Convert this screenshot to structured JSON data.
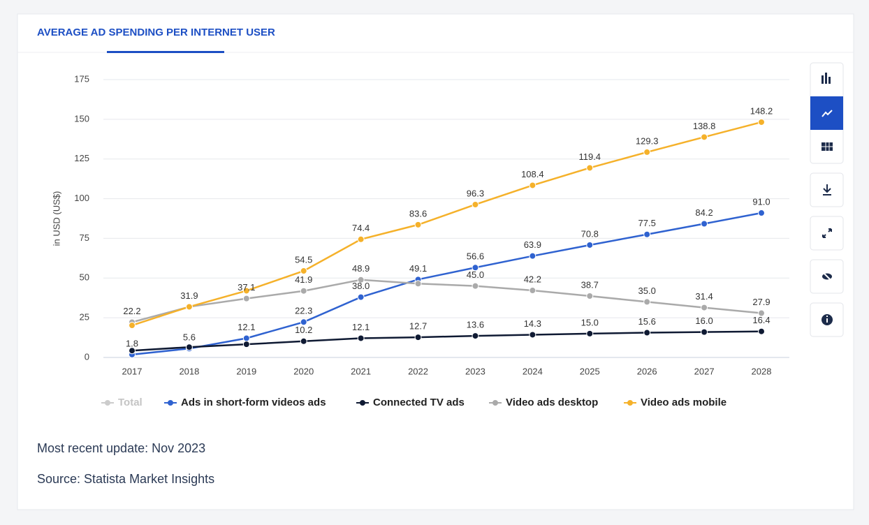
{
  "chart_data": {
    "type": "line",
    "title": "AVERAGE AD SPENDING PER INTERNET USER",
    "y_label": "in USD (US$)",
    "categories": [
      "2017",
      "2018",
      "2019",
      "2020",
      "2021",
      "2022",
      "2023",
      "2024",
      "2025",
      "2026",
      "2027",
      "2028"
    ],
    "series": [
      {
        "name": "Total",
        "color": "#c8c8c8",
        "hidden": true,
        "values": [
          null,
          null,
          null,
          null,
          null,
          null,
          null,
          null,
          null,
          null,
          null,
          null
        ]
      },
      {
        "name": "Ads in short-form videos ads",
        "color": "#2f62d0",
        "values": [
          1.8,
          5.6,
          12.1,
          22.3,
          38.0,
          49.1,
          56.6,
          63.9,
          70.8,
          77.5,
          84.2,
          91.0
        ],
        "value_labels": [
          "1.8",
          "5.6",
          "12.1",
          "22.3",
          "38.0",
          "49.1",
          "56.6",
          "63.9",
          "70.8",
          "77.5",
          "84.2",
          "91.0"
        ]
      },
      {
        "name": "Connected TV ads",
        "color": "#0f1a33",
        "values": [
          4.3,
          6.5,
          8.3,
          10.2,
          12.1,
          12.7,
          13.6,
          14.3,
          15.0,
          15.6,
          16.0,
          16.4
        ],
        "value_labels": [
          null,
          null,
          null,
          "10.2",
          "12.1",
          "12.7",
          "13.6",
          "14.3",
          "15.0",
          "15.6",
          "16.0",
          "16.4"
        ]
      },
      {
        "name": "Video ads desktop",
        "color": "#aaaaaa",
        "values": [
          22.2,
          31.9,
          37.1,
          41.9,
          48.9,
          46.5,
          45.0,
          42.2,
          38.7,
          35.0,
          31.4,
          27.9
        ],
        "value_labels": [
          "22.2",
          "31.9",
          "37.1",
          "41.9",
          "48.9",
          null,
          "45.0",
          "42.2",
          "38.7",
          "35.0",
          "31.4",
          "27.9"
        ]
      },
      {
        "name": "Video ads mobile",
        "color": "#f5b12a",
        "values": [
          20.2,
          31.9,
          42.0,
          54.5,
          74.4,
          83.6,
          96.3,
          108.4,
          119.4,
          129.3,
          138.8,
          148.2
        ],
        "value_labels": [
          null,
          null,
          null,
          "54.5",
          "74.4",
          "83.6",
          "96.3",
          "108.4",
          "119.4",
          "129.3",
          "138.8",
          "148.2"
        ]
      }
    ],
    "ylim": [
      0,
      175
    ],
    "yticks": [
      0,
      25,
      50,
      75,
      100,
      125,
      150,
      175
    ],
    "grid": true
  },
  "footer": {
    "update": "Most recent update: Nov 2023",
    "source": "Source: Statista Market Insights"
  }
}
